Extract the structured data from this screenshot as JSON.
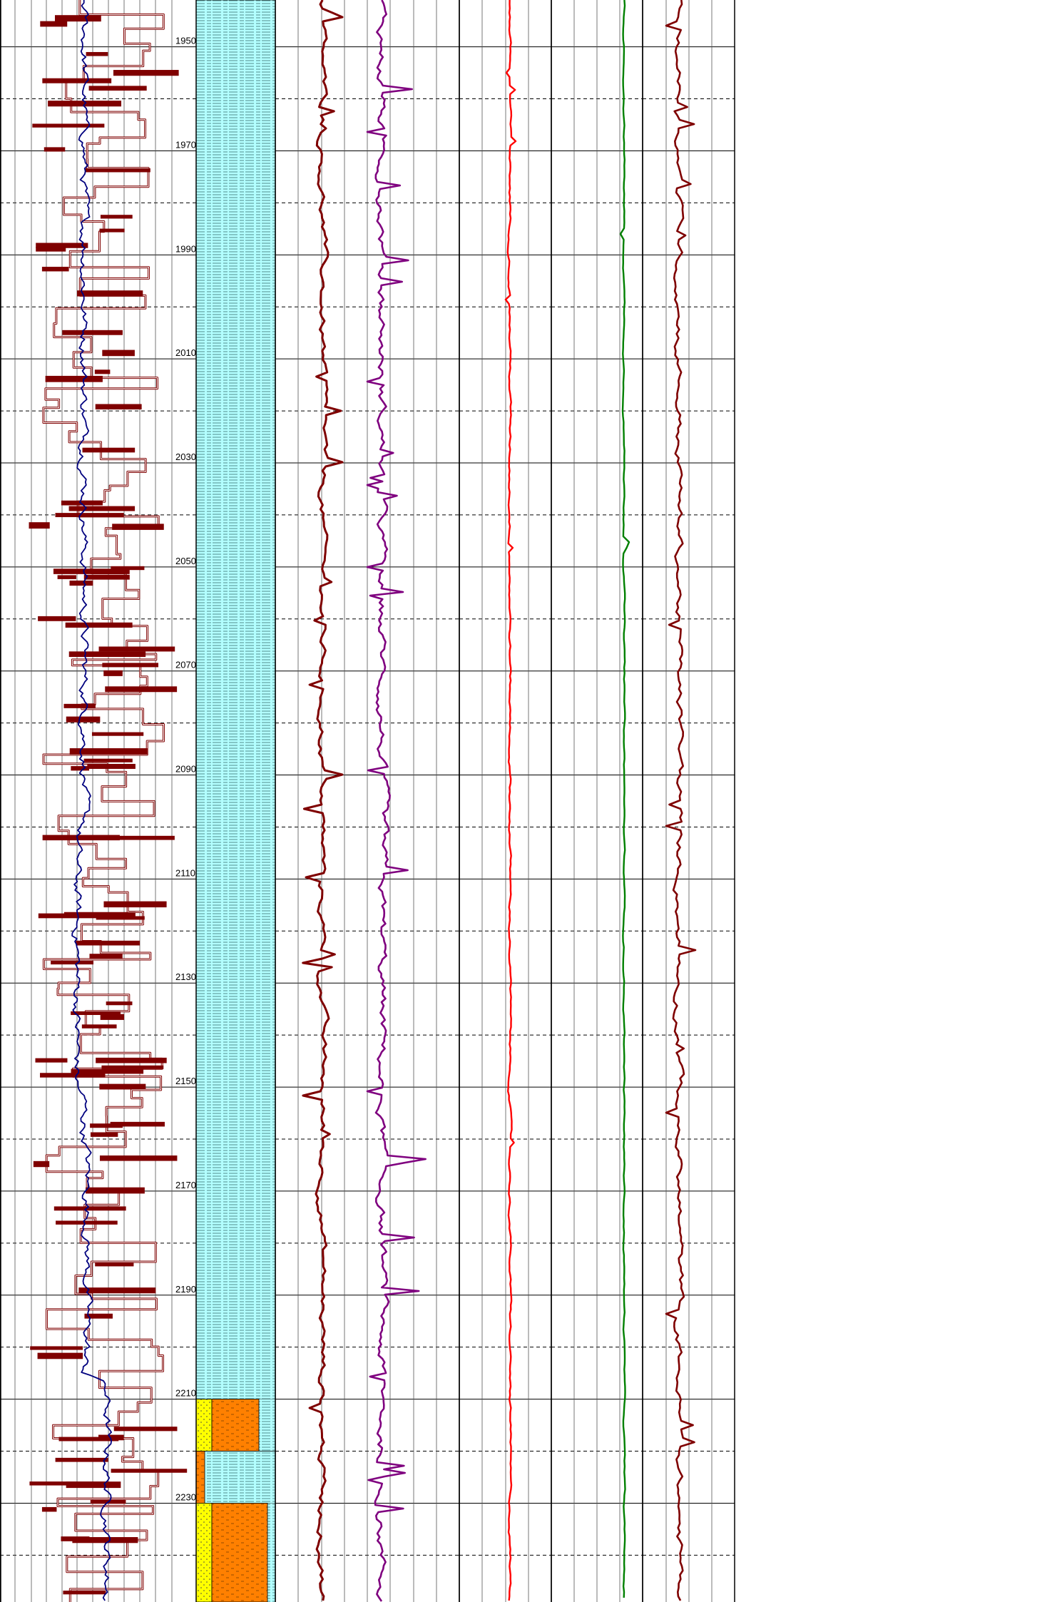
{
  "depth_track": {
    "labels": [
      "1950",
      "1970",
      "1990",
      "2010",
      "2030",
      "2050",
      "2070",
      "2090",
      "2110",
      "2130",
      "2150",
      "2170",
      "2190",
      "2210",
      "2230"
    ]
  },
  "chart_data": {
    "type": "line",
    "depth_range": [
      1941,
      2249
    ],
    "major_interval": 20,
    "minor_interval": 10,
    "grid": true,
    "colors": {
      "gamma": "#00007f",
      "blocky": "#7f0000",
      "resistivity_1": "#7f0000",
      "resistivity_2": "#7f007f",
      "density": "#ff0000",
      "neutron": "#008000",
      "sonic": "#7f0000",
      "lithology_shale": "#b3ffff",
      "lithology_sand": "#ffff00",
      "lithology_carbonate": "#ff8000"
    },
    "lithology": [
      {
        "from": 1941,
        "to": 2210,
        "type": "shale"
      },
      {
        "from": 2210,
        "to": 2220,
        "type": "sand-carbonate"
      },
      {
        "from": 2220,
        "to": 2230,
        "type": "shale-thin-carbonate"
      },
      {
        "from": 2230,
        "to": 2249,
        "type": "sand-carbonate"
      }
    ]
  }
}
